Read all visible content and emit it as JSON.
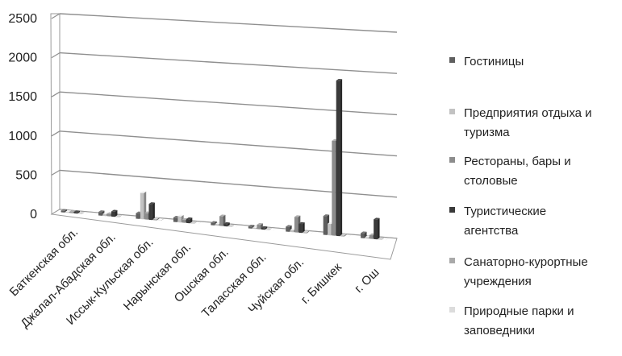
{
  "chart_data": {
    "type": "bar",
    "title": "",
    "xlabel": "",
    "ylabel": "",
    "ylim": [
      0,
      2500
    ],
    "y_ticks": [
      0,
      500,
      1000,
      1500,
      2000,
      2500
    ],
    "y_tick_labels": [
      "0",
      "500",
      "1000",
      "1500",
      "2000",
      "2500"
    ],
    "grid": true,
    "style": "3d-clustered-column",
    "legend_position": "right",
    "categories": [
      "Баткенская обл.",
      "Джалал-Абадская обл.",
      "Иссык-Кульская обл.",
      "Нарынская обл.",
      "Ошская обл.",
      "Таласская обл.",
      "Чуйская обл.",
      "г. Бишкек",
      "г. Ош"
    ],
    "series": [
      {
        "name": "Гостиницы",
        "color": "#5f5f5f",
        "values": [
          20,
          45,
          70,
          55,
          30,
          25,
          60,
          230,
          60
        ]
      },
      {
        "name": "Предприятия отдыха и туризма",
        "color": "#c2c2c2",
        "values": [
          10,
          25,
          330,
          75,
          20,
          15,
          25,
          140,
          15
        ]
      },
      {
        "name": "Рестораны, бары и столовые",
        "color": "#8c8c8c",
        "values": [
          15,
          30,
          80,
          35,
          120,
          55,
          190,
          1160,
          45
        ]
      },
      {
        "name": "Туристические агентства",
        "color": "#3a3a3a",
        "values": [
          15,
          65,
          200,
          50,
          30,
          20,
          110,
          1900,
          240
        ]
      },
      {
        "name": "Санаторно-курортные учреждения",
        "color": "#a9a9a9",
        "values": [
          3,
          3,
          15,
          3,
          3,
          3,
          10,
          10,
          3
        ]
      },
      {
        "name": "Природные парки и заповедники",
        "color": "#dcdcdc",
        "values": [
          2,
          2,
          5,
          2,
          2,
          2,
          2,
          2,
          2
        ]
      }
    ]
  }
}
